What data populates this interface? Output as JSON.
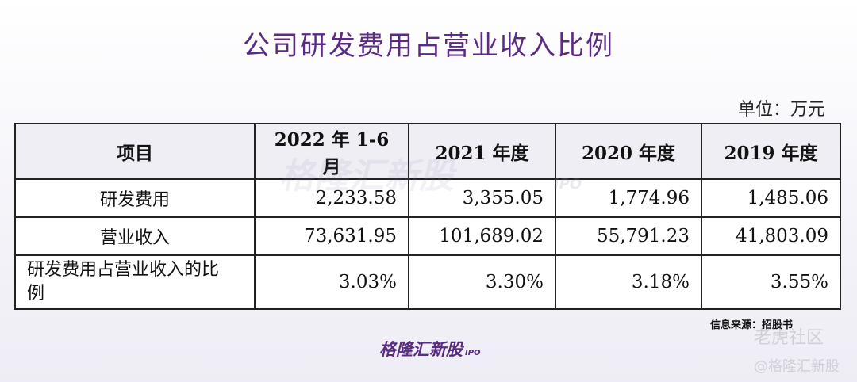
{
  "header": {
    "title": "公司研发费用占营业收入比例",
    "unit": "单位：万元"
  },
  "table": {
    "columns": [
      "项目",
      "2022 年 1-6 月",
      "2021 年度",
      "2020 年度",
      "2019 年度"
    ],
    "rows": [
      [
        "研发费用",
        "2,233.58",
        "3,355.05",
        "1,774.96",
        "1,485.06"
      ],
      [
        "营业收入",
        "73,631.95",
        "101,689.02",
        "55,791.23",
        "41,803.09"
      ],
      [
        "研发费用占营业收入的比例",
        "3.03%",
        "3.30%",
        "3.18%",
        "3.55%"
      ]
    ]
  },
  "footer": {
    "source": "信息来源：招股书",
    "logo": "格隆汇新股",
    "logo_tag": "IPO"
  },
  "watermarks": {
    "table": "格隆汇新股",
    "table_tag": "IPO",
    "community": "老虎社区",
    "handle": "@格隆汇新股"
  }
}
